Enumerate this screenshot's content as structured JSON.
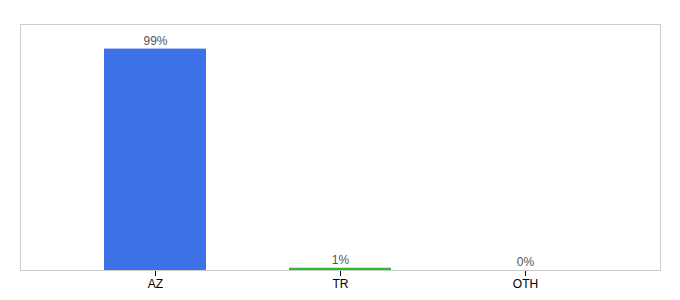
{
  "chart_data": {
    "type": "bar",
    "categories": [
      "AZ",
      "TR",
      "OTH"
    ],
    "values": [
      99,
      1,
      0
    ],
    "value_labels": [
      "99%",
      "1%",
      "0%"
    ],
    "colors": [
      "#3d72e8",
      "#2db82d",
      "#3d72e8"
    ],
    "ylim": [
      0,
      110
    ],
    "data_labels": true,
    "tick_labels": "x",
    "grid": false
  }
}
